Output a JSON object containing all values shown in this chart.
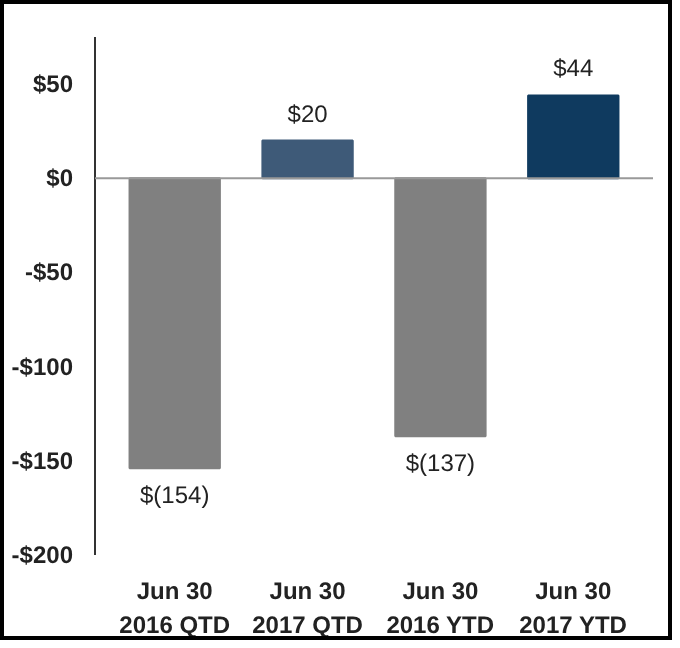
{
  "chart_data": {
    "type": "bar",
    "categories": [
      "Jun 30\n2016 QTD",
      "Jun 30\n2017 QTD",
      "Jun 30\n2016 YTD",
      "Jun 30\n2017 YTD"
    ],
    "values": [
      -154,
      20,
      -137,
      44
    ],
    "colors": [
      "#808080",
      "#3e5a78",
      "#808080",
      "#0f3a5f"
    ],
    "value_labels": [
      "$(154)",
      "$20",
      "$(137)",
      "$44"
    ],
    "ylim": [
      -200,
      75
    ],
    "yticks": [
      {
        "value": -200,
        "label": "-$200"
      },
      {
        "value": -150,
        "label": "-$150"
      },
      {
        "value": -100,
        "label": "-$100"
      },
      {
        "value": -50,
        "label": "-$50"
      },
      {
        "value": 0,
        "label": "$0"
      },
      {
        "value": 50,
        "label": "$50"
      }
    ],
    "ref_lines": [
      {
        "axis": "y",
        "value": 0,
        "color": "#999999"
      }
    ],
    "grid": false
  }
}
